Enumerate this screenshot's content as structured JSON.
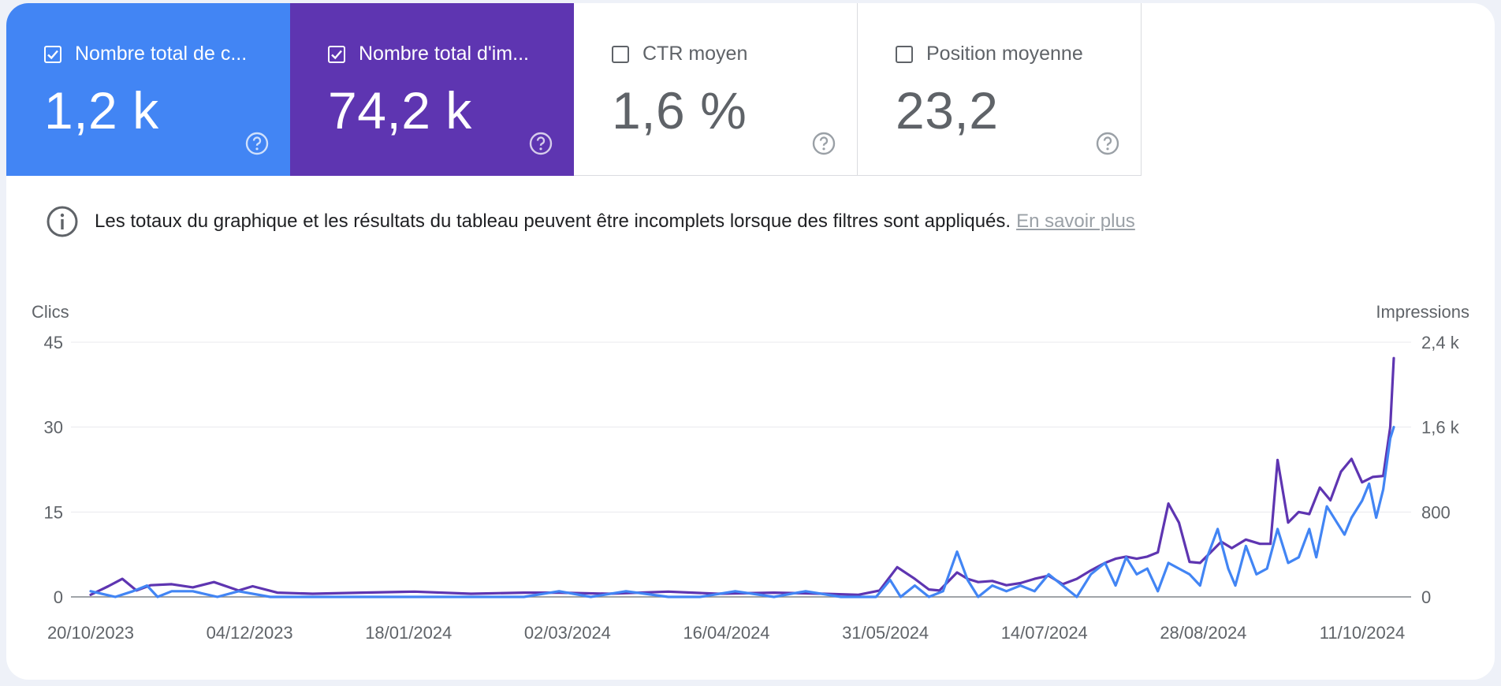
{
  "tiles": [
    {
      "label": "Nombre total de c...",
      "value": "1,2 k",
      "checked": true
    },
    {
      "label": "Nombre total d'im...",
      "value": "74,2 k",
      "checked": true
    },
    {
      "label": "CTR moyen",
      "value": "1,6 %",
      "checked": false
    },
    {
      "label": "Position moyenne",
      "value": "23,2",
      "checked": false
    }
  ],
  "notice": {
    "text": "Les totaux du graphique et les résultats du tableau peuvent être incomplets lorsque des filtres sont appliqués.",
    "link": "En savoir plus"
  },
  "colors": {
    "clicks": "#4285f4",
    "impressions": "#5e35b1",
    "grid": "#e8eaed",
    "baseline": "#80868b"
  },
  "chart_data": {
    "type": "line",
    "left_axis": {
      "title": "Clics",
      "ticks": [
        "0",
        "15",
        "30",
        "45"
      ],
      "range": [
        0,
        45
      ]
    },
    "right_axis": {
      "title": "Impressions",
      "ticks": [
        "0",
        "800",
        "1,6 k",
        "2,4 k"
      ],
      "range": [
        0,
        2400
      ]
    },
    "x_tick_labels": [
      "20/10/2023",
      "04/12/2023",
      "18/01/2024",
      "02/03/2024",
      "16/04/2024",
      "31/05/2024",
      "14/07/2024",
      "28/08/2024",
      "11/10/2024"
    ],
    "x_range": [
      "2023-10-20",
      "2024-10-24"
    ],
    "series": [
      {
        "axis": "left",
        "points": [
          [
            "2023-10-20",
            1
          ],
          [
            "2023-10-27",
            0
          ],
          [
            "2023-11-01",
            1
          ],
          [
            "2023-11-05",
            2
          ],
          [
            "2023-11-08",
            0
          ],
          [
            "2023-11-12",
            1
          ],
          [
            "2023-11-18",
            1
          ],
          [
            "2023-11-25",
            0
          ],
          [
            "2023-12-01",
            1
          ],
          [
            "2023-12-10",
            0
          ],
          [
            "2023-12-20",
            0
          ],
          [
            "2024-01-05",
            0
          ],
          [
            "2024-01-20",
            0
          ],
          [
            "2024-02-05",
            0
          ],
          [
            "2024-02-20",
            0
          ],
          [
            "2024-03-01",
            1
          ],
          [
            "2024-03-10",
            0
          ],
          [
            "2024-03-20",
            1
          ],
          [
            "2024-04-01",
            0
          ],
          [
            "2024-04-10",
            0
          ],
          [
            "2024-04-20",
            1
          ],
          [
            "2024-05-01",
            0
          ],
          [
            "2024-05-10",
            1
          ],
          [
            "2024-05-20",
            0
          ],
          [
            "2024-05-30",
            0
          ],
          [
            "2024-06-03",
            3
          ],
          [
            "2024-06-06",
            0
          ],
          [
            "2024-06-10",
            2
          ],
          [
            "2024-06-14",
            0
          ],
          [
            "2024-06-18",
            1
          ],
          [
            "2024-06-22",
            8
          ],
          [
            "2024-06-25",
            3
          ],
          [
            "2024-06-28",
            0
          ],
          [
            "2024-07-02",
            2
          ],
          [
            "2024-07-06",
            1
          ],
          [
            "2024-07-10",
            2
          ],
          [
            "2024-07-14",
            1
          ],
          [
            "2024-07-18",
            4
          ],
          [
            "2024-07-22",
            2
          ],
          [
            "2024-07-26",
            0
          ],
          [
            "2024-07-30",
            4
          ],
          [
            "2024-08-03",
            6
          ],
          [
            "2024-08-06",
            2
          ],
          [
            "2024-08-09",
            7
          ],
          [
            "2024-08-12",
            4
          ],
          [
            "2024-08-15",
            5
          ],
          [
            "2024-08-18",
            1
          ],
          [
            "2024-08-21",
            6
          ],
          [
            "2024-08-24",
            5
          ],
          [
            "2024-08-27",
            4
          ],
          [
            "2024-08-30",
            2
          ],
          [
            "2024-09-01",
            7
          ],
          [
            "2024-09-04",
            12
          ],
          [
            "2024-09-07",
            5
          ],
          [
            "2024-09-09",
            2
          ],
          [
            "2024-09-12",
            9
          ],
          [
            "2024-09-15",
            4
          ],
          [
            "2024-09-18",
            5
          ],
          [
            "2024-09-21",
            12
          ],
          [
            "2024-09-24",
            6
          ],
          [
            "2024-09-27",
            7
          ],
          [
            "2024-09-30",
            12
          ],
          [
            "2024-10-02",
            7
          ],
          [
            "2024-10-05",
            16
          ],
          [
            "2024-10-08",
            13
          ],
          [
            "2024-10-10",
            11
          ],
          [
            "2024-10-12",
            14
          ],
          [
            "2024-10-15",
            17
          ],
          [
            "2024-10-17",
            20
          ],
          [
            "2024-10-19",
            14
          ],
          [
            "2024-10-21",
            19
          ],
          [
            "2024-10-23",
            28
          ],
          [
            "2024-10-24",
            30
          ]
        ]
      },
      {
        "axis": "right",
        "points": [
          [
            "2023-10-20",
            20
          ],
          [
            "2023-10-25",
            100
          ],
          [
            "2023-10-29",
            170
          ],
          [
            "2023-11-02",
            60
          ],
          [
            "2023-11-06",
            110
          ],
          [
            "2023-11-12",
            120
          ],
          [
            "2023-11-18",
            90
          ],
          [
            "2023-11-24",
            140
          ],
          [
            "2023-12-01",
            60
          ],
          [
            "2023-12-05",
            100
          ],
          [
            "2023-12-12",
            40
          ],
          [
            "2023-12-22",
            30
          ],
          [
            "2024-01-05",
            40
          ],
          [
            "2024-01-20",
            50
          ],
          [
            "2024-02-05",
            30
          ],
          [
            "2024-02-20",
            40
          ],
          [
            "2024-03-01",
            40
          ],
          [
            "2024-03-15",
            30
          ],
          [
            "2024-04-01",
            50
          ],
          [
            "2024-04-15",
            30
          ],
          [
            "2024-05-01",
            40
          ],
          [
            "2024-05-15",
            30
          ],
          [
            "2024-05-25",
            20
          ],
          [
            "2024-05-31",
            60
          ],
          [
            "2024-06-05",
            280
          ],
          [
            "2024-06-10",
            170
          ],
          [
            "2024-06-14",
            70
          ],
          [
            "2024-06-17",
            60
          ],
          [
            "2024-06-22",
            230
          ],
          [
            "2024-06-25",
            170
          ],
          [
            "2024-06-28",
            140
          ],
          [
            "2024-07-02",
            150
          ],
          [
            "2024-07-06",
            110
          ],
          [
            "2024-07-10",
            130
          ],
          [
            "2024-07-14",
            170
          ],
          [
            "2024-07-18",
            200
          ],
          [
            "2024-07-22",
            120
          ],
          [
            "2024-07-26",
            170
          ],
          [
            "2024-07-30",
            250
          ],
          [
            "2024-08-03",
            320
          ],
          [
            "2024-08-06",
            360
          ],
          [
            "2024-08-09",
            380
          ],
          [
            "2024-08-12",
            360
          ],
          [
            "2024-08-15",
            380
          ],
          [
            "2024-08-18",
            420
          ],
          [
            "2024-08-21",
            880
          ],
          [
            "2024-08-24",
            700
          ],
          [
            "2024-08-27",
            330
          ],
          [
            "2024-08-30",
            320
          ],
          [
            "2024-09-02",
            420
          ],
          [
            "2024-09-05",
            520
          ],
          [
            "2024-09-08",
            460
          ],
          [
            "2024-09-12",
            540
          ],
          [
            "2024-09-16",
            500
          ],
          [
            "2024-09-19",
            500
          ],
          [
            "2024-09-21",
            1290
          ],
          [
            "2024-09-24",
            700
          ],
          [
            "2024-09-27",
            800
          ],
          [
            "2024-09-30",
            780
          ],
          [
            "2024-10-03",
            1030
          ],
          [
            "2024-10-06",
            910
          ],
          [
            "2024-10-09",
            1180
          ],
          [
            "2024-10-12",
            1300
          ],
          [
            "2024-10-15",
            1080
          ],
          [
            "2024-10-18",
            1130
          ],
          [
            "2024-10-21",
            1140
          ],
          [
            "2024-10-23",
            1600
          ],
          [
            "2024-10-24",
            2250
          ]
        ]
      }
    ]
  }
}
